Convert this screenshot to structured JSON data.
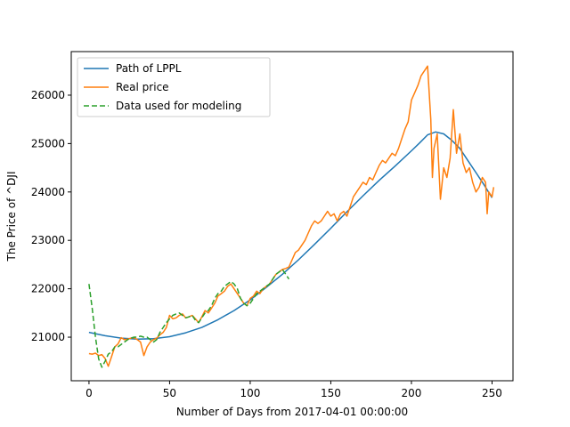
{
  "chart_data": {
    "type": "line",
    "xlabel": "Number of Days from 2017-04-01 00:00:00",
    "ylabel": "The Price of ^DJI",
    "xlim": [
      -11,
      263
    ],
    "ylim": [
      20100,
      26900
    ],
    "xticks": [
      0,
      50,
      100,
      150,
      200,
      250
    ],
    "yticks": [
      21000,
      22000,
      23000,
      24000,
      25000,
      26000
    ],
    "grid": false,
    "legend_position": "upper-left",
    "series": [
      {
        "name": "Path of LPPL",
        "color": "#1f77b4",
        "style": "solid",
        "x": [
          0,
          10,
          20,
          30,
          40,
          50,
          60,
          70,
          80,
          90,
          100,
          110,
          120,
          130,
          140,
          150,
          160,
          170,
          180,
          190,
          200,
          205,
          210,
          215,
          220,
          225,
          230,
          235,
          240,
          245,
          250
        ],
        "y": [
          21100,
          21030,
          20980,
          20960,
          20970,
          21010,
          21090,
          21200,
          21360,
          21550,
          21770,
          22030,
          22300,
          22600,
          22920,
          23250,
          23590,
          23920,
          24240,
          24540,
          24850,
          25010,
          25180,
          25240,
          25200,
          25070,
          24900,
          24650,
          24400,
          24150,
          23880
        ]
      },
      {
        "name": "Real price",
        "color": "#ff7f0e",
        "style": "solid",
        "x": [
          0,
          2,
          4,
          6,
          8,
          10,
          12,
          14,
          16,
          18,
          20,
          22,
          24,
          26,
          28,
          30,
          32,
          34,
          36,
          38,
          40,
          42,
          44,
          46,
          48,
          50,
          52,
          54,
          56,
          58,
          60,
          62,
          64,
          66,
          68,
          70,
          72,
          74,
          76,
          78,
          80,
          82,
          84,
          86,
          88,
          90,
          92,
          94,
          96,
          98,
          100,
          102,
          104,
          106,
          108,
          110,
          112,
          114,
          116,
          118,
          120,
          122,
          124,
          126,
          128,
          130,
          132,
          134,
          136,
          138,
          140,
          142,
          144,
          146,
          148,
          150,
          152,
          154,
          156,
          158,
          160,
          162,
          164,
          166,
          168,
          170,
          172,
          174,
          176,
          178,
          180,
          182,
          184,
          186,
          188,
          190,
          192,
          194,
          196,
          198,
          200,
          202,
          204,
          206,
          208,
          210,
          212,
          213,
          214,
          216,
          218,
          220,
          222,
          224,
          226,
          228,
          230,
          232,
          234,
          236,
          238,
          240,
          242,
          244,
          246,
          247,
          248,
          250,
          251
        ],
        "y": [
          20660,
          20650,
          20670,
          20620,
          20640,
          20560,
          20400,
          20600,
          20800,
          20860,
          20990,
          20950,
          20960,
          20980,
          20990,
          20950,
          20900,
          20620,
          20800,
          20900,
          20950,
          20980,
          21050,
          21100,
          21200,
          21450,
          21380,
          21400,
          21450,
          21480,
          21400,
          21420,
          21450,
          21380,
          21300,
          21420,
          21550,
          21500,
          21600,
          21700,
          21850,
          21900,
          21950,
          22050,
          22100,
          22000,
          21900,
          21800,
          21700,
          21650,
          21800,
          21850,
          21950,
          21900,
          22000,
          22050,
          22100,
          22200,
          22300,
          22350,
          22400,
          22420,
          22450,
          22600,
          22750,
          22800,
          22900,
          23000,
          23150,
          23300,
          23400,
          23350,
          23400,
          23500,
          23600,
          23500,
          23550,
          23400,
          23550,
          23600,
          23500,
          23700,
          23900,
          24000,
          24100,
          24200,
          24150,
          24300,
          24250,
          24400,
          24550,
          24650,
          24600,
          24700,
          24800,
          24750,
          24900,
          25100,
          25300,
          25450,
          25900,
          26050,
          26200,
          26400,
          26500,
          26600,
          25500,
          24300,
          24900,
          25200,
          23850,
          24500,
          24300,
          24700,
          25700,
          24800,
          25200,
          24600,
          24400,
          24500,
          24200,
          24000,
          24100,
          24300,
          24200,
          23550,
          24000,
          23900,
          24100
        ]
      },
      {
        "name": "Data used for modeling",
        "color": "#2ca02c",
        "style": "dashed",
        "x": [
          0,
          2,
          4,
          6,
          8,
          10,
          12,
          14,
          16,
          18,
          20,
          22,
          24,
          26,
          28,
          30,
          32,
          34,
          36,
          38,
          40,
          42,
          44,
          46,
          48,
          50,
          52,
          54,
          56,
          58,
          60,
          62,
          64,
          66,
          68,
          70,
          72,
          74,
          76,
          78,
          80,
          82,
          84,
          86,
          88,
          90,
          92,
          94,
          96,
          98,
          100,
          102,
          104,
          106,
          108,
          110,
          112,
          114,
          116,
          118,
          120,
          122,
          124
        ],
        "y": [
          22100,
          21600,
          21000,
          20550,
          20380,
          20500,
          20650,
          20700,
          20800,
          20800,
          20850,
          20900,
          20950,
          20980,
          21000,
          21000,
          21020,
          21000,
          21000,
          20950,
          20900,
          20950,
          21100,
          21200,
          21300,
          21380,
          21450,
          21480,
          21500,
          21450,
          21400,
          21420,
          21450,
          21350,
          21300,
          21400,
          21500,
          21550,
          21650,
          21800,
          21900,
          21950,
          22050,
          22100,
          22150,
          22100,
          22000,
          21800,
          21700,
          21650,
          21700,
          21800,
          21900,
          21950,
          22000,
          22050,
          22100,
          22200,
          22300,
          22350,
          22400,
          22300,
          22200
        ]
      }
    ]
  }
}
